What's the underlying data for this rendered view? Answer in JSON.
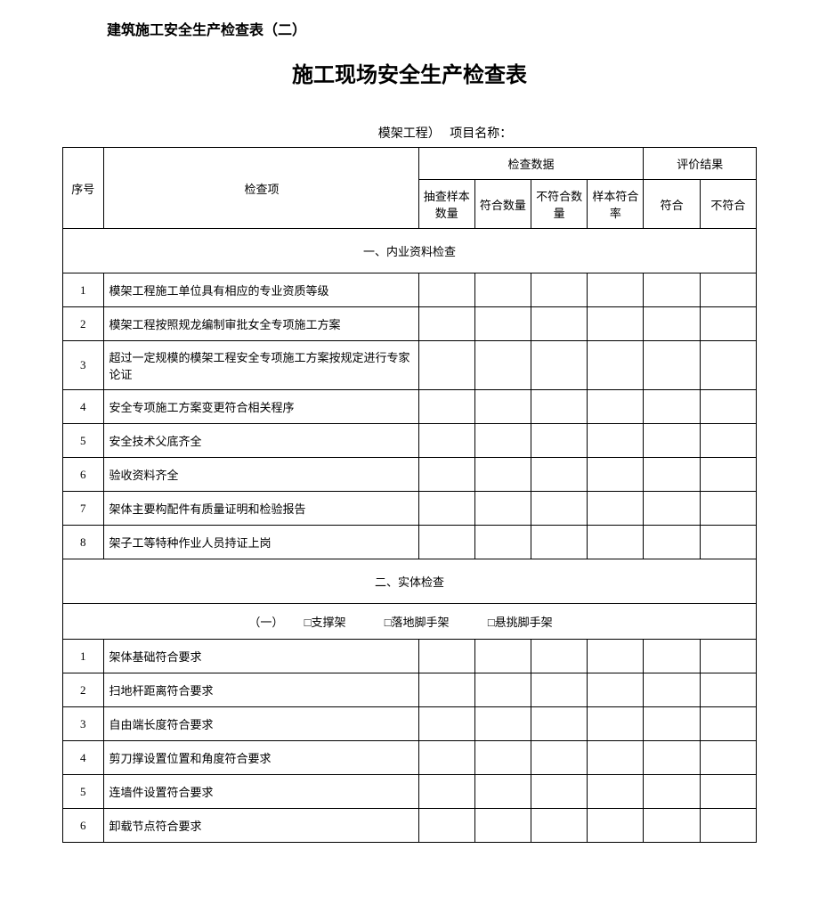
{
  "header_text": "建筑施工安全生产检查表（二）",
  "title": "施工现场安全生产检查表",
  "subtitle_left": "模架工程）",
  "subtitle_right": "项目名称：",
  "header_row": {
    "seq": "序号",
    "item": "检查项",
    "data_group": "检查数据",
    "result_group": "评价结果",
    "sample_qty": "抽查样本数量",
    "conform_qty": "符合数量",
    "nonconform_qty": "不符合数量",
    "sample_rate": "样本符合率",
    "conform": "符合",
    "nonconform": "不符合"
  },
  "section1": {
    "title": "一、内业资料检查",
    "rows": [
      {
        "seq": "1",
        "item": "模架工程施工单位具有相应的专业资质等级"
      },
      {
        "seq": "2",
        "item": "模架工程按照规龙编制审批女全专项施工方案"
      },
      {
        "seq": "3",
        "item": "超过一定规模的模架工程安全专项施工方案按规定进行专家论证"
      },
      {
        "seq": "4",
        "item": "安全专项施工方案变更符合相关程序"
      },
      {
        "seq": "5",
        "item": "安全技术父底齐全"
      },
      {
        "seq": "6",
        "item": "验收资料齐全"
      },
      {
        "seq": "7",
        "item": "架体主要构配件有质量证明和检验报告"
      },
      {
        "seq": "8",
        "item": "架子工等特种作业人员持证上岗"
      }
    ]
  },
  "section2": {
    "title": "二、实体检查",
    "subsection_label": "（一）",
    "checkbox1": "□支撑架",
    "checkbox2": "□落地脚手架",
    "checkbox3": "□悬挑脚手架",
    "rows": [
      {
        "seq": "1",
        "item": "架体基础符合要求"
      },
      {
        "seq": "2",
        "item": "扫地杆距离符合要求"
      },
      {
        "seq": "3",
        "item": "自由端长度符合要求"
      },
      {
        "seq": "4",
        "item": "剪刀撑设置位置和角度符合要求"
      },
      {
        "seq": "5",
        "item": "连墙件设置符合要求"
      },
      {
        "seq": "6",
        "item": "卸载节点符合要求"
      }
    ]
  },
  "colors": {
    "background": "#ffffff",
    "text": "#000000",
    "border": "#000000"
  },
  "fonts": {
    "header_size": 16,
    "title_size": 24,
    "body_size": 13
  }
}
